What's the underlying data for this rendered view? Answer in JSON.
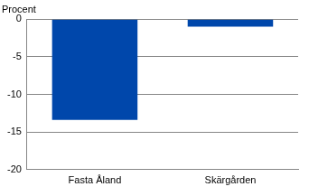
{
  "chart_data": {
    "type": "bar",
    "y_label": "Procent",
    "categories": [
      "Fasta Åland",
      "Skärgården"
    ],
    "values": [
      -13.4,
      -1.0
    ],
    "color": "#0047ab",
    "ylim": [
      -20,
      0
    ],
    "yticks": [
      -20,
      -15,
      -10,
      -5,
      0
    ],
    "grid": true
  }
}
